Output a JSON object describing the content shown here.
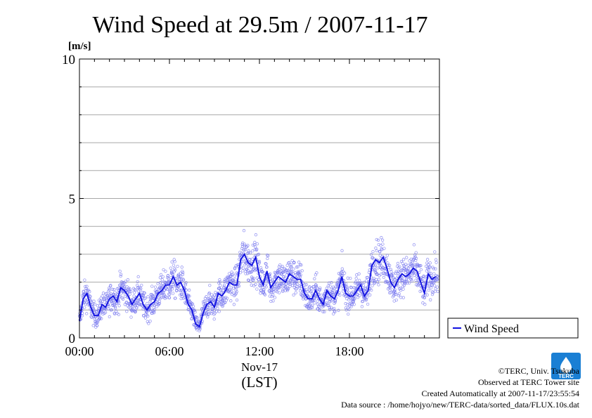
{
  "chart_data": {
    "type": "scatter",
    "title": "Wind Speed at 29.5m / 2007-11-17",
    "ylabel": "[m/s]",
    "xlabel": "(LST)",
    "date_label": "Nov-17",
    "ylim": [
      0,
      10
    ],
    "xlim_hours": [
      0,
      24
    ],
    "y_ticks": [
      "0",
      "5",
      "10"
    ],
    "x_ticks": [
      {
        "hour": 0,
        "label": "00:00"
      },
      {
        "hour": 6,
        "label": "06:00"
      },
      {
        "hour": 12,
        "label": "12:00"
      },
      {
        "hour": 18,
        "label": "18:00"
      }
    ],
    "grid": true,
    "legend_position": "right",
    "colors": {
      "series": "#1010e0",
      "points": "#7a7aee"
    },
    "series": [
      {
        "name": "Wind Speed",
        "x_hours": [
          0.0,
          0.25,
          0.5,
          0.75,
          1.0,
          1.25,
          1.5,
          1.75,
          2.0,
          2.25,
          2.5,
          2.75,
          3.0,
          3.25,
          3.5,
          3.75,
          4.0,
          4.25,
          4.5,
          4.75,
          5.0,
          5.25,
          5.5,
          5.75,
          6.0,
          6.25,
          6.5,
          6.75,
          7.0,
          7.25,
          7.5,
          7.75,
          8.0,
          8.25,
          8.5,
          8.75,
          9.0,
          9.25,
          9.5,
          9.75,
          10.0,
          10.25,
          10.5,
          10.75,
          11.0,
          11.25,
          11.5,
          11.75,
          12.0,
          12.25,
          12.5,
          12.75,
          13.0,
          13.25,
          13.5,
          13.75,
          14.0,
          14.25,
          14.5,
          14.75,
          15.0,
          15.25,
          15.5,
          15.75,
          16.0,
          16.25,
          16.5,
          16.75,
          17.0,
          17.25,
          17.5,
          17.75,
          18.0,
          18.25,
          18.5,
          18.75,
          19.0,
          19.25,
          19.5,
          19.75,
          20.0,
          20.25,
          20.5,
          20.75,
          21.0,
          21.25,
          21.5,
          21.75,
          22.0,
          22.25,
          22.5,
          22.75,
          23.0,
          23.25,
          23.5,
          23.75
        ],
        "values": [
          0.6,
          1.4,
          1.6,
          1.1,
          0.8,
          0.8,
          1.2,
          1.1,
          1.4,
          1.5,
          1.3,
          1.8,
          1.7,
          1.5,
          1.2,
          1.4,
          1.6,
          1.2,
          1.0,
          1.2,
          1.3,
          1.6,
          1.7,
          1.9,
          1.9,
          2.2,
          1.9,
          2.0,
          1.7,
          1.2,
          1.0,
          0.5,
          0.4,
          0.9,
          1.2,
          1.3,
          1.1,
          1.6,
          1.5,
          1.7,
          2.0,
          1.9,
          1.9,
          2.8,
          3.0,
          2.7,
          2.6,
          2.9,
          2.2,
          1.9,
          2.4,
          1.8,
          2.0,
          2.2,
          2.1,
          2.0,
          2.3,
          2.2,
          2.1,
          2.1,
          1.6,
          1.4,
          1.4,
          1.7,
          1.4,
          1.2,
          1.7,
          1.5,
          1.4,
          1.7,
          2.2,
          1.6,
          1.5,
          1.5,
          1.7,
          1.9,
          1.5,
          1.7,
          2.6,
          2.8,
          2.7,
          2.9,
          2.5,
          2.0,
          1.8,
          2.1,
          2.3,
          2.2,
          2.3,
          2.5,
          2.4,
          2.0,
          1.6,
          2.3,
          2.1,
          2.2
        ]
      }
    ]
  },
  "footer": {
    "copyright": "©TERC, Univ. Tsukuba",
    "observed": "Observed at TERC Tower site",
    "created": "Created Automatically at 2007-11-17/23:55:54",
    "source": "Data source : /home/hojyo/new/TERC-data/sorted_data/FLUX.10s.dat"
  },
  "logo": {
    "text": "TERC",
    "color": "#1a7fd4"
  }
}
